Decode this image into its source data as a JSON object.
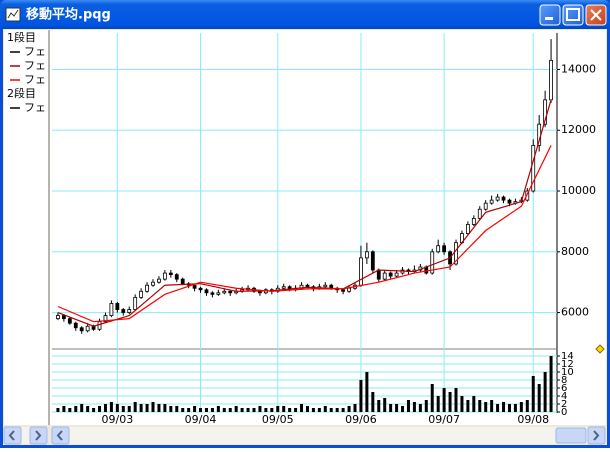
{
  "window": {
    "title": "移動平均.pqg"
  },
  "chart_data": {
    "type": "candlestick",
    "x": [
      0,
      1,
      2,
      3,
      4,
      5,
      6,
      7,
      8,
      9,
      10,
      11,
      12,
      13,
      14,
      15,
      16,
      17,
      18,
      19,
      20,
      21,
      22,
      23,
      24,
      25,
      26,
      27,
      28,
      29,
      30,
      31,
      32,
      33,
      34,
      35,
      36,
      37,
      38,
      39,
      40,
      41,
      42,
      43,
      44,
      45,
      46,
      47,
      48,
      49,
      50,
      51,
      52,
      53,
      54,
      55,
      56,
      57,
      58,
      59,
      60,
      61,
      62,
      63,
      64,
      65,
      66,
      67,
      68,
      69,
      70,
      71,
      72,
      73,
      74,
      75,
      76,
      77,
      78,
      79,
      80,
      81,
      82,
      83
    ],
    "xlim": [
      -1,
      84
    ],
    "xticks": [
      {
        "value": 10,
        "label": "09/03"
      },
      {
        "value": 24,
        "label": "09/04"
      },
      {
        "value": 37,
        "label": "09/05"
      },
      {
        "value": 51,
        "label": "09/06"
      },
      {
        "value": 65,
        "label": "09/07"
      },
      {
        "value": 80,
        "label": "09/08"
      }
    ],
    "grid": true,
    "panels": [
      {
        "label": "1段目",
        "ylim": [
          4900,
          15200
        ],
        "yticks": [
          6000,
          8000,
          10000,
          12000,
          14000
        ],
        "series": [
          {
            "name": "フェ",
            "type": "candlestick",
            "color": "#000000",
            "ohlc": [
              [
                5800,
                6000,
                5750,
                5900
              ],
              [
                5900,
                5950,
                5700,
                5800
              ],
              [
                5800,
                5850,
                5600,
                5650
              ],
              [
                5650,
                5700,
                5400,
                5500
              ],
              [
                5500,
                5550,
                5300,
                5400
              ],
              [
                5400,
                5650,
                5350,
                5550
              ],
              [
                5550,
                5600,
                5400,
                5450
              ],
              [
                5450,
                5800,
                5400,
                5700
              ],
              [
                5700,
                6000,
                5650,
                5900
              ],
              [
                5900,
                6400,
                5850,
                6300
              ],
              [
                6300,
                6350,
                6000,
                6100
              ],
              [
                6100,
                6150,
                5900,
                6000
              ],
              [
                6000,
                6200,
                5950,
                6100
              ],
              [
                6100,
                6600,
                6050,
                6500
              ],
              [
                6500,
                6800,
                6450,
                6700
              ],
              [
                6700,
                7000,
                6650,
                6900
              ],
              [
                6900,
                7100,
                6850,
                7000
              ],
              [
                7000,
                7200,
                6950,
                7100
              ],
              [
                7100,
                7400,
                7050,
                7300
              ],
              [
                7300,
                7400,
                7150,
                7250
              ],
              [
                7250,
                7300,
                7000,
                7100
              ],
              [
                7100,
                7150,
                6900,
                6950
              ],
              [
                6950,
                7000,
                6800,
                6900
              ],
              [
                6900,
                6950,
                6700,
                6800
              ],
              [
                6800,
                6850,
                6650,
                6750
              ],
              [
                6750,
                6800,
                6550,
                6650
              ],
              [
                6650,
                6700,
                6500,
                6600
              ],
              [
                6600,
                6750,
                6550,
                6650
              ],
              [
                6650,
                6800,
                6600,
                6700
              ],
              [
                6700,
                6750,
                6550,
                6650
              ],
              [
                6650,
                6800,
                6600,
                6700
              ],
              [
                6700,
                6850,
                6650,
                6750
              ],
              [
                6750,
                6900,
                6700,
                6800
              ],
              [
                6800,
                6850,
                6650,
                6700
              ],
              [
                6700,
                6750,
                6550,
                6650
              ],
              [
                6650,
                6800,
                6600,
                6750
              ],
              [
                6750,
                6800,
                6600,
                6700
              ],
              [
                6700,
                6900,
                6650,
                6800
              ],
              [
                6800,
                6950,
                6750,
                6850
              ],
              [
                6850,
                6900,
                6700,
                6750
              ],
              [
                6750,
                6900,
                6700,
                6800
              ],
              [
                6800,
                7000,
                6750,
                6900
              ],
              [
                6900,
                6950,
                6800,
                6850
              ],
              [
                6850,
                6900,
                6700,
                6800
              ],
              [
                6800,
                6950,
                6750,
                6850
              ],
              [
                6850,
                7000,
                6800,
                6900
              ],
              [
                6900,
                6950,
                6750,
                6800
              ],
              [
                6800,
                6850,
                6650,
                6750
              ],
              [
                6750,
                6800,
                6600,
                6700
              ],
              [
                6700,
                6900,
                6650,
                6800
              ],
              [
                6800,
                7000,
                6750,
                6900
              ],
              [
                6900,
                8200,
                6850,
                7800
              ],
              [
                7800,
                8300,
                7600,
                8000
              ],
              [
                8000,
                8050,
                7300,
                7400
              ],
              [
                7400,
                7450,
                7000,
                7100
              ],
              [
                7100,
                7400,
                7050,
                7300
              ],
              [
                7300,
                7350,
                7100,
                7200
              ],
              [
                7200,
                7400,
                7150,
                7300
              ],
              [
                7300,
                7500,
                7250,
                7400
              ],
              [
                7400,
                7450,
                7250,
                7350
              ],
              [
                7350,
                7550,
                7300,
                7400
              ],
              [
                7400,
                7600,
                7350,
                7500
              ],
              [
                7500,
                7550,
                7250,
                7300
              ],
              [
                7300,
                8100,
                7250,
                8000
              ],
              [
                8000,
                8400,
                7950,
                8200
              ],
              [
                8200,
                8300,
                7900,
                8000
              ],
              [
                8000,
                8050,
                7400,
                7600
              ],
              [
                7600,
                8400,
                7550,
                8300
              ],
              [
                8300,
                8700,
                8250,
                8600
              ],
              [
                8600,
                9000,
                8550,
                8900
              ],
              [
                8900,
                9200,
                8850,
                9100
              ],
              [
                9100,
                9500,
                9050,
                9400
              ],
              [
                9400,
                9700,
                9350,
                9600
              ],
              [
                9600,
                9850,
                9550,
                9700
              ],
              [
                9700,
                9900,
                9650,
                9800
              ],
              [
                9800,
                9850,
                9600,
                9700
              ],
              [
                9700,
                9750,
                9500,
                9600
              ],
              [
                9600,
                9750,
                9550,
                9650
              ],
              [
                9650,
                9800,
                9600,
                9700
              ],
              [
                9700,
                10100,
                9650,
                10000
              ],
              [
                10000,
                11700,
                9950,
                11500
              ],
              [
                11500,
                12500,
                11300,
                12200
              ],
              [
                12200,
                13300,
                12100,
                13000
              ],
              [
                13000,
                15000,
                12900,
                14300
              ]
            ]
          },
          {
            "name": "フェ",
            "type": "line",
            "color": "#b00000",
            "x": [
              0,
              6,
              12,
              18,
              24,
              30,
              36,
              42,
              48,
              54,
              60,
              66,
              72,
              78,
              83
            ],
            "values": [
              6000,
              5550,
              5900,
              6900,
              6950,
              6700,
              6720,
              6830,
              6780,
              7400,
              7350,
              7800,
              9300,
              9650,
              13000
            ]
          },
          {
            "name": "フェ",
            "type": "line",
            "color": "#ff0000",
            "x": [
              0,
              6,
              12,
              18,
              24,
              30,
              36,
              42,
              48,
              54,
              60,
              66,
              72,
              78,
              83
            ],
            "values": [
              6200,
              5700,
              5800,
              6600,
              7000,
              6800,
              6700,
              6780,
              6780,
              7000,
              7300,
              7500,
              8700,
              9500,
              11500
            ]
          }
        ]
      },
      {
        "label": "2段目",
        "ylim": [
          0,
          15
        ],
        "yticks": [
          0,
          2,
          4,
          6,
          8,
          10,
          12,
          14
        ],
        "series": [
          {
            "name": "フェ",
            "type": "bar",
            "color": "#000000",
            "values": [
              1,
              1.5,
              1,
              1.5,
              2,
              1.5,
              1,
              1.5,
              2,
              2.5,
              2,
              1.5,
              1.5,
              2.5,
              2,
              2,
              2.5,
              2,
              2,
              1.5,
              1.5,
              1,
              1,
              1.5,
              1,
              1,
              1,
              1.5,
              1,
              1,
              1.5,
              1,
              1,
              1,
              1.5,
              1,
              1,
              1.5,
              1.5,
              1,
              1,
              2,
              1.5,
              1,
              1,
              1.5,
              1,
              1,
              1,
              1.5,
              2,
              8,
              10,
              5,
              3,
              3.5,
              2,
              2,
              1.5,
              3,
              2.5,
              2,
              3,
              7,
              4,
              6,
              5,
              6,
              4,
              3,
              4,
              3,
              2.5,
              3,
              2,
              2.5,
              2,
              2,
              2.5,
              3,
              9,
              7,
              10,
              14
            ]
          }
        ]
      }
    ]
  }
}
